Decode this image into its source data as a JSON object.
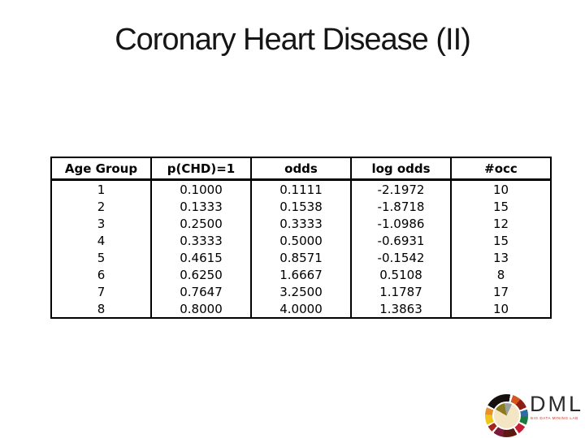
{
  "slide": {
    "title": "Coronary Heart Disease (II)"
  },
  "chart_data": {
    "type": "table",
    "title": "Coronary Heart Disease (II)",
    "columns": [
      "Age Group",
      "p(CHD)=1",
      "odds",
      "log odds",
      "#occ"
    ],
    "rows": [
      [
        "1",
        "0.1000",
        "0.1111",
        "-2.1972",
        "10"
      ],
      [
        "2",
        "0.1333",
        "0.1538",
        "-1.8718",
        "15"
      ],
      [
        "3",
        "0.2500",
        "0.3333",
        "-1.0986",
        "12"
      ],
      [
        "4",
        "0.3333",
        "0.5000",
        "-0.6931",
        "15"
      ],
      [
        "5",
        "0.4615",
        "0.8571",
        "-0.1542",
        "13"
      ],
      [
        "6",
        "0.6250",
        "1.6667",
        "0.5108",
        "8"
      ],
      [
        "7",
        "0.7647",
        "3.2500",
        "1.1787",
        "17"
      ],
      [
        "8",
        "0.8000",
        "4.0000",
        "1.3863",
        "10"
      ]
    ]
  },
  "logo": {
    "text": "DML",
    "subtext": "BIG DATA MINING LAB",
    "brand_colors": [
      "#15100d",
      "#d4561e",
      "#8f1d12",
      "#2e6da3",
      "#1d7a3e",
      "#c61d33",
      "#5d1a12",
      "#f0c419",
      "#e8902b"
    ]
  }
}
